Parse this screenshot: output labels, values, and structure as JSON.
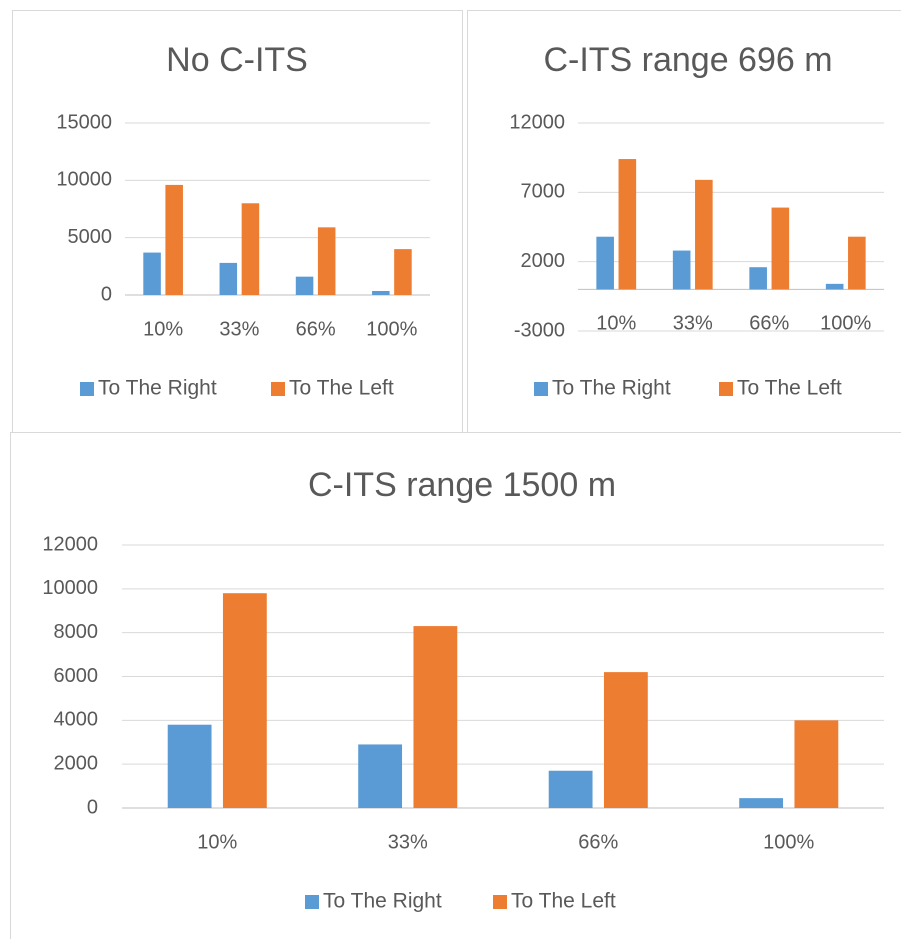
{
  "chart_data": [
    {
      "type": "bar",
      "title": "No C-ITS",
      "categories": [
        "10%",
        "33%",
        "66%",
        "100%"
      ],
      "series": [
        {
          "name": "To The Right",
          "color": "#5b9bd5",
          "values": [
            3700,
            2800,
            1600,
            350
          ]
        },
        {
          "name": "To The Left",
          "color": "#ed7d31",
          "values": [
            9600,
            8000,
            5900,
            4000
          ]
        }
      ],
      "ylim": [
        0,
        15000
      ],
      "yticks": [
        0,
        5000,
        10000,
        15000
      ],
      "grid": true,
      "legend": "bottom"
    },
    {
      "type": "bar",
      "title": "C-ITS range 696 m",
      "categories": [
        "10%",
        "33%",
        "66%",
        "100%"
      ],
      "series": [
        {
          "name": "To The Right",
          "color": "#5b9bd5",
          "values": [
            3800,
            2800,
            1600,
            400
          ]
        },
        {
          "name": "To The Left",
          "color": "#ed7d31",
          "values": [
            9400,
            7900,
            5900,
            3800
          ]
        }
      ],
      "ylim": [
        -3000,
        12000
      ],
      "yticks": [
        -3000,
        2000,
        7000,
        12000
      ],
      "grid": true,
      "legend": "bottom"
    },
    {
      "type": "bar",
      "title": "C-ITS range 1500 m",
      "categories": [
        "10%",
        "33%",
        "66%",
        "100%"
      ],
      "series": [
        {
          "name": "To The Right",
          "color": "#5b9bd5",
          "values": [
            3800,
            2900,
            1700,
            450
          ]
        },
        {
          "name": "To The Left",
          "color": "#ed7d31",
          "values": [
            9800,
            8300,
            6200,
            4000
          ]
        }
      ],
      "ylim": [
        0,
        12000
      ],
      "yticks": [
        0,
        2000,
        4000,
        6000,
        8000,
        10000,
        12000
      ],
      "grid": true,
      "legend": "bottom"
    }
  ]
}
